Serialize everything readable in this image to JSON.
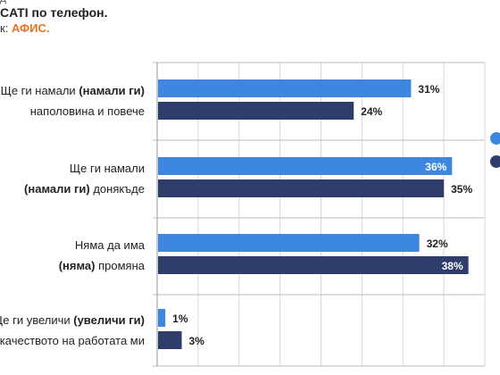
{
  "header": {
    "top_fragment": "д",
    "line1": "CATI по телефон.",
    "line2_prefix": "к:",
    "line2_source": "АФИС."
  },
  "chart_data": {
    "type": "bar",
    "orientation": "horizontal",
    "categories": [
      {
        "lines": [
          [
            {
              "t": "Ще ги намали ",
              "b": false
            },
            {
              "t": "(намали ги)",
              "b": true
            }
          ],
          [
            {
              "t": "наполовина и повече",
              "b": false
            }
          ]
        ]
      },
      {
        "lines": [
          [
            {
              "t": "Ще ги намали",
              "b": false
            }
          ],
          [
            {
              "t": "(намали ги)",
              "b": true
            },
            {
              "t": " донякъде",
              "b": false
            }
          ]
        ]
      },
      {
        "lines": [
          [
            {
              "t": "Няма да има",
              "b": false
            }
          ],
          [
            {
              "t": "(няма)",
              "b": true
            },
            {
              "t": " промяна",
              "b": false
            }
          ]
        ]
      },
      {
        "lines": [
          [
            {
              "t": "Ще ги увеличи ",
              "b": false
            },
            {
              "t": "(увеличи ги)",
              "b": true
            }
          ],
          [
            {
              "t": "качеството на работата ми",
              "b": false
            }
          ]
        ]
      }
    ],
    "series": [
      {
        "values": [
          31,
          36,
          32,
          1
        ],
        "color": "#3d87e0"
      },
      {
        "values": [
          24,
          35,
          38,
          3
        ],
        "color": "#2e3d6b"
      }
    ],
    "value_labels": [
      [
        "31%",
        "36%",
        "32%",
        "1%"
      ],
      [
        "24%",
        "35%",
        "38%",
        "3%"
      ]
    ],
    "xlim": [
      0,
      40
    ],
    "grid": true,
    "legend": "right",
    "legend_marker_colors": [
      "#3d87e0",
      "#2e3d6b"
    ]
  }
}
